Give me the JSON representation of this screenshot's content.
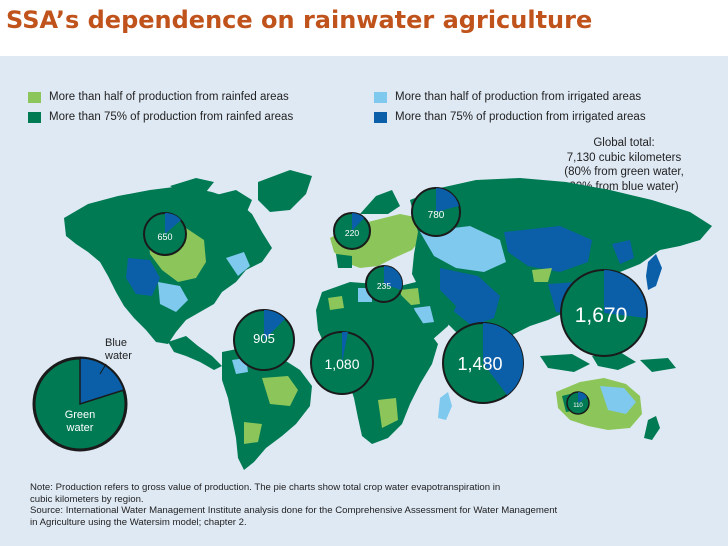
{
  "title": "SSA’s dependence on rainwater agriculture",
  "legend": [
    {
      "label": "More than half of production from rainfed areas",
      "color": "#8cc65a"
    },
    {
      "label": "More than 75% of production from rainfed areas",
      "color": "#007a53"
    },
    {
      "label": "More than half of production from irrigated areas",
      "color": "#7fc8ee"
    },
    {
      "label": "More than 75% of production from irrigated areas",
      "color": "#0a5fa8"
    }
  ],
  "global_total": {
    "line1": "Global total:",
    "line2": "7,130 cubic kilometers",
    "line3": "(80% from green water,",
    "line4": "20% from blue water)"
  },
  "key_pie": {
    "blue_label_1": "Blue",
    "blue_label_2": "water",
    "green_label_1": "Green",
    "green_label_2": "water"
  },
  "colors": {
    "green_water": "#007a53",
    "blue_water": "#0a5fa8",
    "pie_border": "#1a1a1a",
    "ocean": "#dfe9f4"
  },
  "regional_pies": [
    {
      "label": "650"
    },
    {
      "label": "220"
    },
    {
      "label": "780"
    },
    {
      "label": "235"
    },
    {
      "label": "905"
    },
    {
      "label": "1,080"
    },
    {
      "label": "1,480"
    },
    {
      "label": "1,670"
    },
    {
      "label": "110"
    }
  ],
  "notes": {
    "line1": "Note: Production refers to gross value of production. The pie charts show total crop water evapotranspiration in",
    "line2": "cubic kilometers by region.",
    "line3": "Source: International Water Management Institute analysis done for the Comprehensive Assessment for Water Management",
    "line4": "in Agriculture using the Watersim model; chapter 2."
  }
}
